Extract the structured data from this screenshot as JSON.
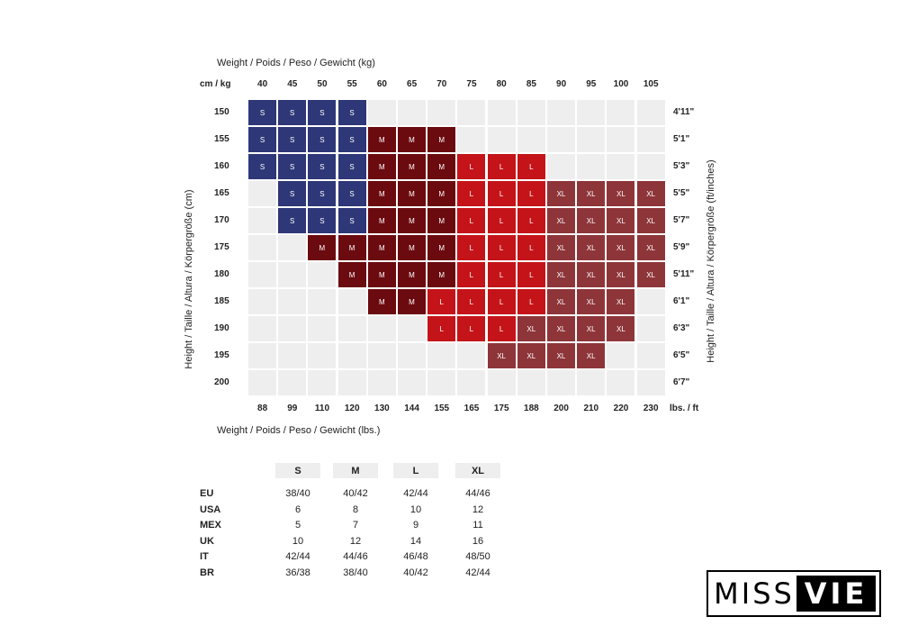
{
  "chart_data": {
    "type": "heatmap",
    "title_top": "Weight / Poids / Peso / Gewicht (kg)",
    "title_bottom": "Weight / Poids / Peso / Gewicht (lbs.)",
    "ylabel_left": "Height / Taille / Altura / Körpergröße (cm)",
    "ylabel_right": "Height / Taille / Altura / Körpergröße (ft/inches)",
    "corner_left": "cm / kg",
    "corner_right": "lbs. / ft",
    "kg": [
      "40",
      "45",
      "50",
      "55",
      "60",
      "65",
      "70",
      "75",
      "80",
      "85",
      "90",
      "95",
      "100",
      "105"
    ],
    "lbs": [
      "88",
      "99",
      "110",
      "120",
      "130",
      "144",
      "155",
      "165",
      "175",
      "188",
      "200",
      "210",
      "220",
      "230"
    ],
    "cm": [
      "150",
      "155",
      "160",
      "165",
      "170",
      "175",
      "180",
      "185",
      "190",
      "195",
      "200"
    ],
    "ft": [
      "4'11\"",
      "5'1\"",
      "5'3\"",
      "5'5\"",
      "5'7\"",
      "5'9\"",
      "5'11\"",
      "6'1\"",
      "6'3\"",
      "6'5\"",
      "6'7\""
    ],
    "grid": [
      [
        "S",
        "S",
        "S",
        "S",
        "",
        "",
        "",
        "",
        "",
        "",
        "",
        "",
        "",
        ""
      ],
      [
        "S",
        "S",
        "S",
        "S",
        "M",
        "M",
        "M",
        "",
        "",
        "",
        "",
        "",
        "",
        ""
      ],
      [
        "S",
        "S",
        "S",
        "S",
        "M",
        "M",
        "M",
        "L",
        "L",
        "L",
        "",
        "",
        "",
        ""
      ],
      [
        "",
        "S",
        "S",
        "S",
        "M",
        "M",
        "M",
        "L",
        "L",
        "L",
        "XL",
        "XL",
        "XL",
        "XL"
      ],
      [
        "",
        "S",
        "S",
        "S",
        "M",
        "M",
        "M",
        "L",
        "L",
        "L",
        "XL",
        "XL",
        "XL",
        "XL"
      ],
      [
        "",
        "",
        "M",
        "M",
        "M",
        "M",
        "M",
        "L",
        "L",
        "L",
        "XL",
        "XL",
        "XL",
        "XL"
      ],
      [
        "",
        "",
        "",
        "M",
        "M",
        "M",
        "M",
        "L",
        "L",
        "L",
        "XL",
        "XL",
        "XL",
        "XL"
      ],
      [
        "",
        "",
        "",
        "",
        "M",
        "M",
        "L",
        "L",
        "L",
        "L",
        "XL",
        "XL",
        "XL",
        ""
      ],
      [
        "",
        "",
        "",
        "",
        "",
        "",
        "L",
        "L",
        "L",
        "XL",
        "XL",
        "XL",
        "XL",
        ""
      ],
      [
        "",
        "",
        "",
        "",
        "",
        "",
        "",
        "",
        "XL",
        "XL",
        "XL",
        "XL",
        "",
        ""
      ],
      [
        "",
        "",
        "",
        "",
        "",
        "",
        "",
        "",
        "",
        "",
        "",
        "",
        "",
        ""
      ]
    ],
    "size_colors": {
      "S": "#2e3777",
      "M": "#6b0a0f",
      "L": "#c41419",
      "XL": "#8e3539"
    }
  },
  "size_table": {
    "headers": [
      "S",
      "M",
      "L",
      "XL"
    ],
    "rows": [
      {
        "label": "EU",
        "values": [
          "38/40",
          "40/42",
          "42/44",
          "44/46"
        ]
      },
      {
        "label": "USA",
        "values": [
          "6",
          "8",
          "10",
          "12"
        ]
      },
      {
        "label": "MEX",
        "values": [
          "5",
          "7",
          "9",
          "11"
        ]
      },
      {
        "label": "UK",
        "values": [
          "10",
          "12",
          "14",
          "16"
        ]
      },
      {
        "label": "IT",
        "values": [
          "42/44",
          "44/46",
          "46/48",
          "48/50"
        ]
      },
      {
        "label": "BR",
        "values": [
          "36/38",
          "38/40",
          "40/42",
          "42/44"
        ]
      }
    ]
  },
  "logo": {
    "part1": "MISS",
    "part2": "VIE"
  }
}
